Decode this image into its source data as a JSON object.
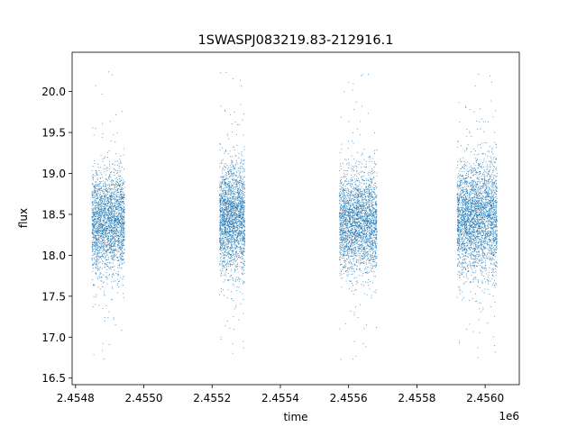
{
  "chart_data": {
    "type": "scatter",
    "title": "1SWASPJ083219.83-212916.1",
    "xlabel": "time",
    "ylabel": "flux",
    "x_offset_label": "1e6",
    "xlim": [
      2.45479,
      2.4561
    ],
    "ylim": [
      16.42,
      20.48
    ],
    "x_ticks": [
      2.4548,
      2.455,
      2.4552,
      2.4554,
      2.4556,
      2.4558,
      2.456
    ],
    "x_tick_labels": [
      "2.4548",
      "2.4550",
      "2.4552",
      "2.4554",
      "2.4556",
      "2.4558",
      "2.4560"
    ],
    "y_ticks": [
      16.5,
      17.0,
      17.5,
      18.0,
      18.5,
      19.0,
      19.5,
      20.0
    ],
    "y_tick_labels": [
      "16.5",
      "17.0",
      "17.5",
      "18.0",
      "18.5",
      "19.0",
      "19.5",
      "20.0"
    ],
    "grid": false,
    "marker_color": "#1f77b4",
    "series": [
      {
        "clusters": [
          {
            "x_range": [
              2.454848,
              2.454944
            ],
            "center": 18.4,
            "spread": 0.3,
            "y_min": 16.65,
            "y_max": 20.28,
            "n": 2400
          },
          {
            "x_range": [
              2.455222,
              2.455296
            ],
            "center": 18.45,
            "spread": 0.32,
            "y_min": 16.65,
            "y_max": 20.25,
            "n": 2200
          },
          {
            "x_range": [
              2.455573,
              2.455683
            ],
            "center": 18.4,
            "spread": 0.3,
            "y_min": 16.6,
            "y_max": 20.3,
            "n": 2600
          },
          {
            "x_range": [
              2.455918,
              2.456035
            ],
            "center": 18.45,
            "spread": 0.33,
            "y_min": 16.65,
            "y_max": 20.25,
            "n": 3000
          }
        ]
      }
    ]
  }
}
